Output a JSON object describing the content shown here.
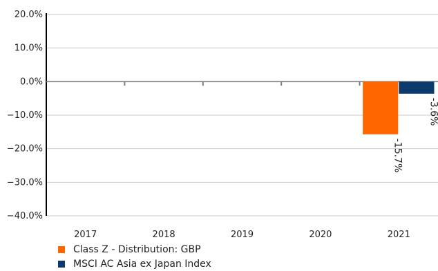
{
  "chart_data": {
    "type": "bar",
    "categories": [
      "2017",
      "2018",
      "2019",
      "2020",
      "2021"
    ],
    "series": [
      {
        "name": "Class Z - Distribution: GBP",
        "color": "#ff6600",
        "values": [
          null,
          null,
          null,
          null,
          -15.7
        ],
        "labels": [
          "",
          "",
          "",
          "",
          "-15.7%"
        ]
      },
      {
        "name": "MSCI AC Asia ex Japan Index",
        "color": "#0b3a6b",
        "values": [
          null,
          null,
          null,
          null,
          -3.6
        ],
        "labels": [
          "",
          "",
          "",
          "",
          "-3.6%"
        ]
      }
    ],
    "yticks": [
      20,
      10,
      0,
      -10,
      -20,
      -30,
      -40
    ],
    "ytick_labels": [
      "20.0%",
      "10.0%",
      "0.0%",
      "−10.0%",
      "−20.0%",
      "−30.0%",
      "−40.0%"
    ],
    "ylim": [
      -40,
      20
    ],
    "grid": true,
    "legend_position": "bottom-left"
  }
}
